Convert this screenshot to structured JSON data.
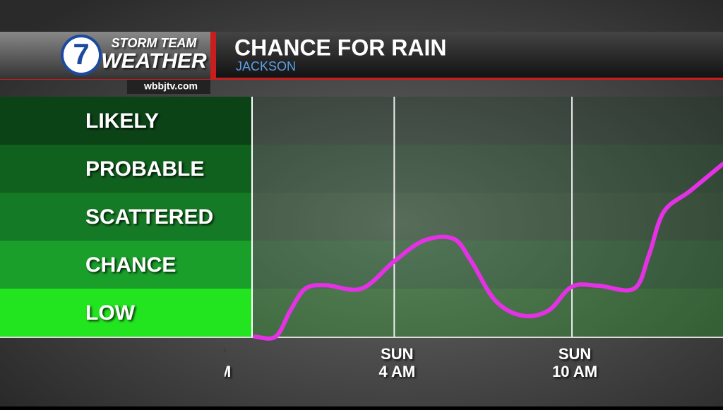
{
  "header": {
    "logo_number": "7",
    "logo_top": "STORM TEAM",
    "logo_bottom": "WEATHER",
    "website": "wbbjtv.com"
  },
  "chart_data": {
    "type": "line",
    "title": "CHANCE FOR RAIN",
    "subtitle": "JACKSON",
    "x": [
      1.3,
      2.0,
      2.5,
      3.0,
      3.7,
      4.9,
      6.0,
      7.0,
      8.0,
      8.6,
      9.4,
      10.3,
      11.2,
      12.0,
      12.9,
      14.1,
      14.6,
      15.1,
      16.0,
      17.1
    ],
    "series": [
      {
        "color": "#e531e5",
        "values": [
          0.0,
          0.0,
          0.55,
          1.0,
          1.07,
          1.0,
          1.57,
          2.0,
          2.04,
          1.57,
          0.76,
          0.44,
          0.54,
          1.04,
          1.06,
          1.0,
          1.7,
          2.6,
          3.04,
          3.6
        ]
      }
    ],
    "xlim": [
      1.2,
      17.1
    ],
    "ylim": [
      0,
      5
    ],
    "xticks": [
      {
        "value": 0,
        "label": [
          "T",
          "PM"
        ]
      },
      {
        "value": 6,
        "label": [
          "SUN",
          "4 AM"
        ]
      },
      {
        "value": 12,
        "label": [
          "SUN",
          "10 AM"
        ]
      }
    ],
    "yticks": [
      {
        "value": 0.5,
        "label": "LOW"
      },
      {
        "value": 1.5,
        "label": "CHANCE"
      },
      {
        "value": 2.5,
        "label": "SCATTERED"
      },
      {
        "value": 3.5,
        "label": "PROBABLE"
      },
      {
        "value": 4.5,
        "label": "LIKELY"
      }
    ],
    "band_colors": [
      "#22e41f",
      "#1a9f2b",
      "#157a25",
      "#10601e",
      "#0b4216"
    ],
    "grid": true
  }
}
